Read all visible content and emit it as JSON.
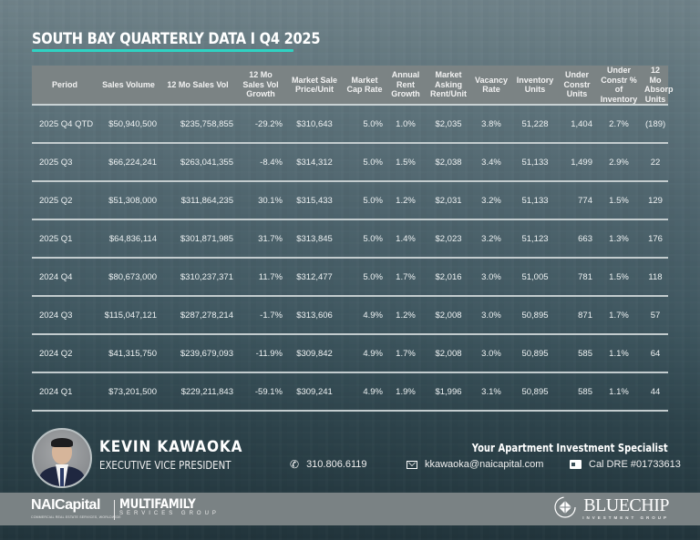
{
  "title": "SOUTH BAY QUARTERLY DATA I Q4 2025",
  "colors": {
    "accent": "#2fd3c3",
    "header_bg": "#7b8384",
    "footer_band": "#7a8284"
  },
  "table": {
    "headers": [
      "Period",
      "Sales Volume",
      "12 Mo Sales Vol",
      "12 Mo Sales Vol Growth",
      "Market Sale Price/Unit",
      "Market Cap Rate",
      "Annual Rent Growth",
      "Market Asking Rent/Unit",
      "Vacancy Rate",
      "Inventory Units",
      "Under Constr Units",
      "Under Constr % of Inventory",
      "12 Mo Absorp Units"
    ],
    "rows": [
      [
        "2025 Q4 QTD",
        "$50,940,500",
        "$235,758,855",
        "-29.2%",
        "$310,643",
        "5.0%",
        "1.0%",
        "$2,035",
        "3.8%",
        "51,228",
        "1,404",
        "2.7%",
        "(189)"
      ],
      [
        "2025 Q3",
        "$66,224,241",
        "$263,041,355",
        "-8.4%",
        "$314,312",
        "5.0%",
        "1.5%",
        "$2,038",
        "3.4%",
        "51,133",
        "1,499",
        "2.9%",
        "22"
      ],
      [
        "2025 Q2",
        "$51,308,000",
        "$311,864,235",
        "30.1%",
        "$315,433",
        "5.0%",
        "1.2%",
        "$2,031",
        "3.2%",
        "51,133",
        "774",
        "1.5%",
        "129"
      ],
      [
        "2025 Q1",
        "$64,836,114",
        "$301,871,985",
        "31.7%",
        "$313,845",
        "5.0%",
        "1.4%",
        "$2,023",
        "3.2%",
        "51,123",
        "663",
        "1.3%",
        "176"
      ],
      [
        "2024 Q4",
        "$80,673,000",
        "$310,237,371",
        "11.7%",
        "$312,477",
        "5.0%",
        "1.7%",
        "$2,016",
        "3.0%",
        "51,005",
        "781",
        "1.5%",
        "118"
      ],
      [
        "2024 Q3",
        "$115,047,121",
        "$287,278,214",
        "-1.7%",
        "$313,606",
        "4.9%",
        "1.2%",
        "$2,008",
        "3.0%",
        "50,895",
        "871",
        "1.7%",
        "57"
      ],
      [
        "2024 Q2",
        "$41,315,750",
        "$239,679,093",
        "-11.9%",
        "$309,842",
        "4.9%",
        "1.7%",
        "$2,008",
        "3.0%",
        "50,895",
        "585",
        "1.1%",
        "64"
      ],
      [
        "2024 Q1",
        "$73,201,500",
        "$229,211,843",
        "-59.1%",
        "$309,241",
        "4.9%",
        "1.9%",
        "$1,996",
        "3.1%",
        "50,895",
        "585",
        "1.1%",
        "44"
      ]
    ]
  },
  "agent": {
    "name": "KEVIN KAWAOKA",
    "role": "EXECUTIVE VICE PRESIDENT",
    "tagline": "Your Apartment Investment Specialist",
    "phone": "310.806.6119",
    "email": "kkawaoka@naicapital.com",
    "license": "Cal DRE #01733613",
    "icons": {
      "phone": "phone-icon",
      "email": "envelope-icon",
      "license": "id-card-icon"
    }
  },
  "branding": {
    "nai_logo": "NAICapital",
    "nai_tagline": "COMMERCIAL REAL ESTATE SERVICES, WORLDWIDE",
    "division": "MULTIFAMILY",
    "division_sub": "SERVICES GROUP",
    "partner": "BLUECHIP",
    "partner_sub": "INVESTMENT GROUP"
  }
}
